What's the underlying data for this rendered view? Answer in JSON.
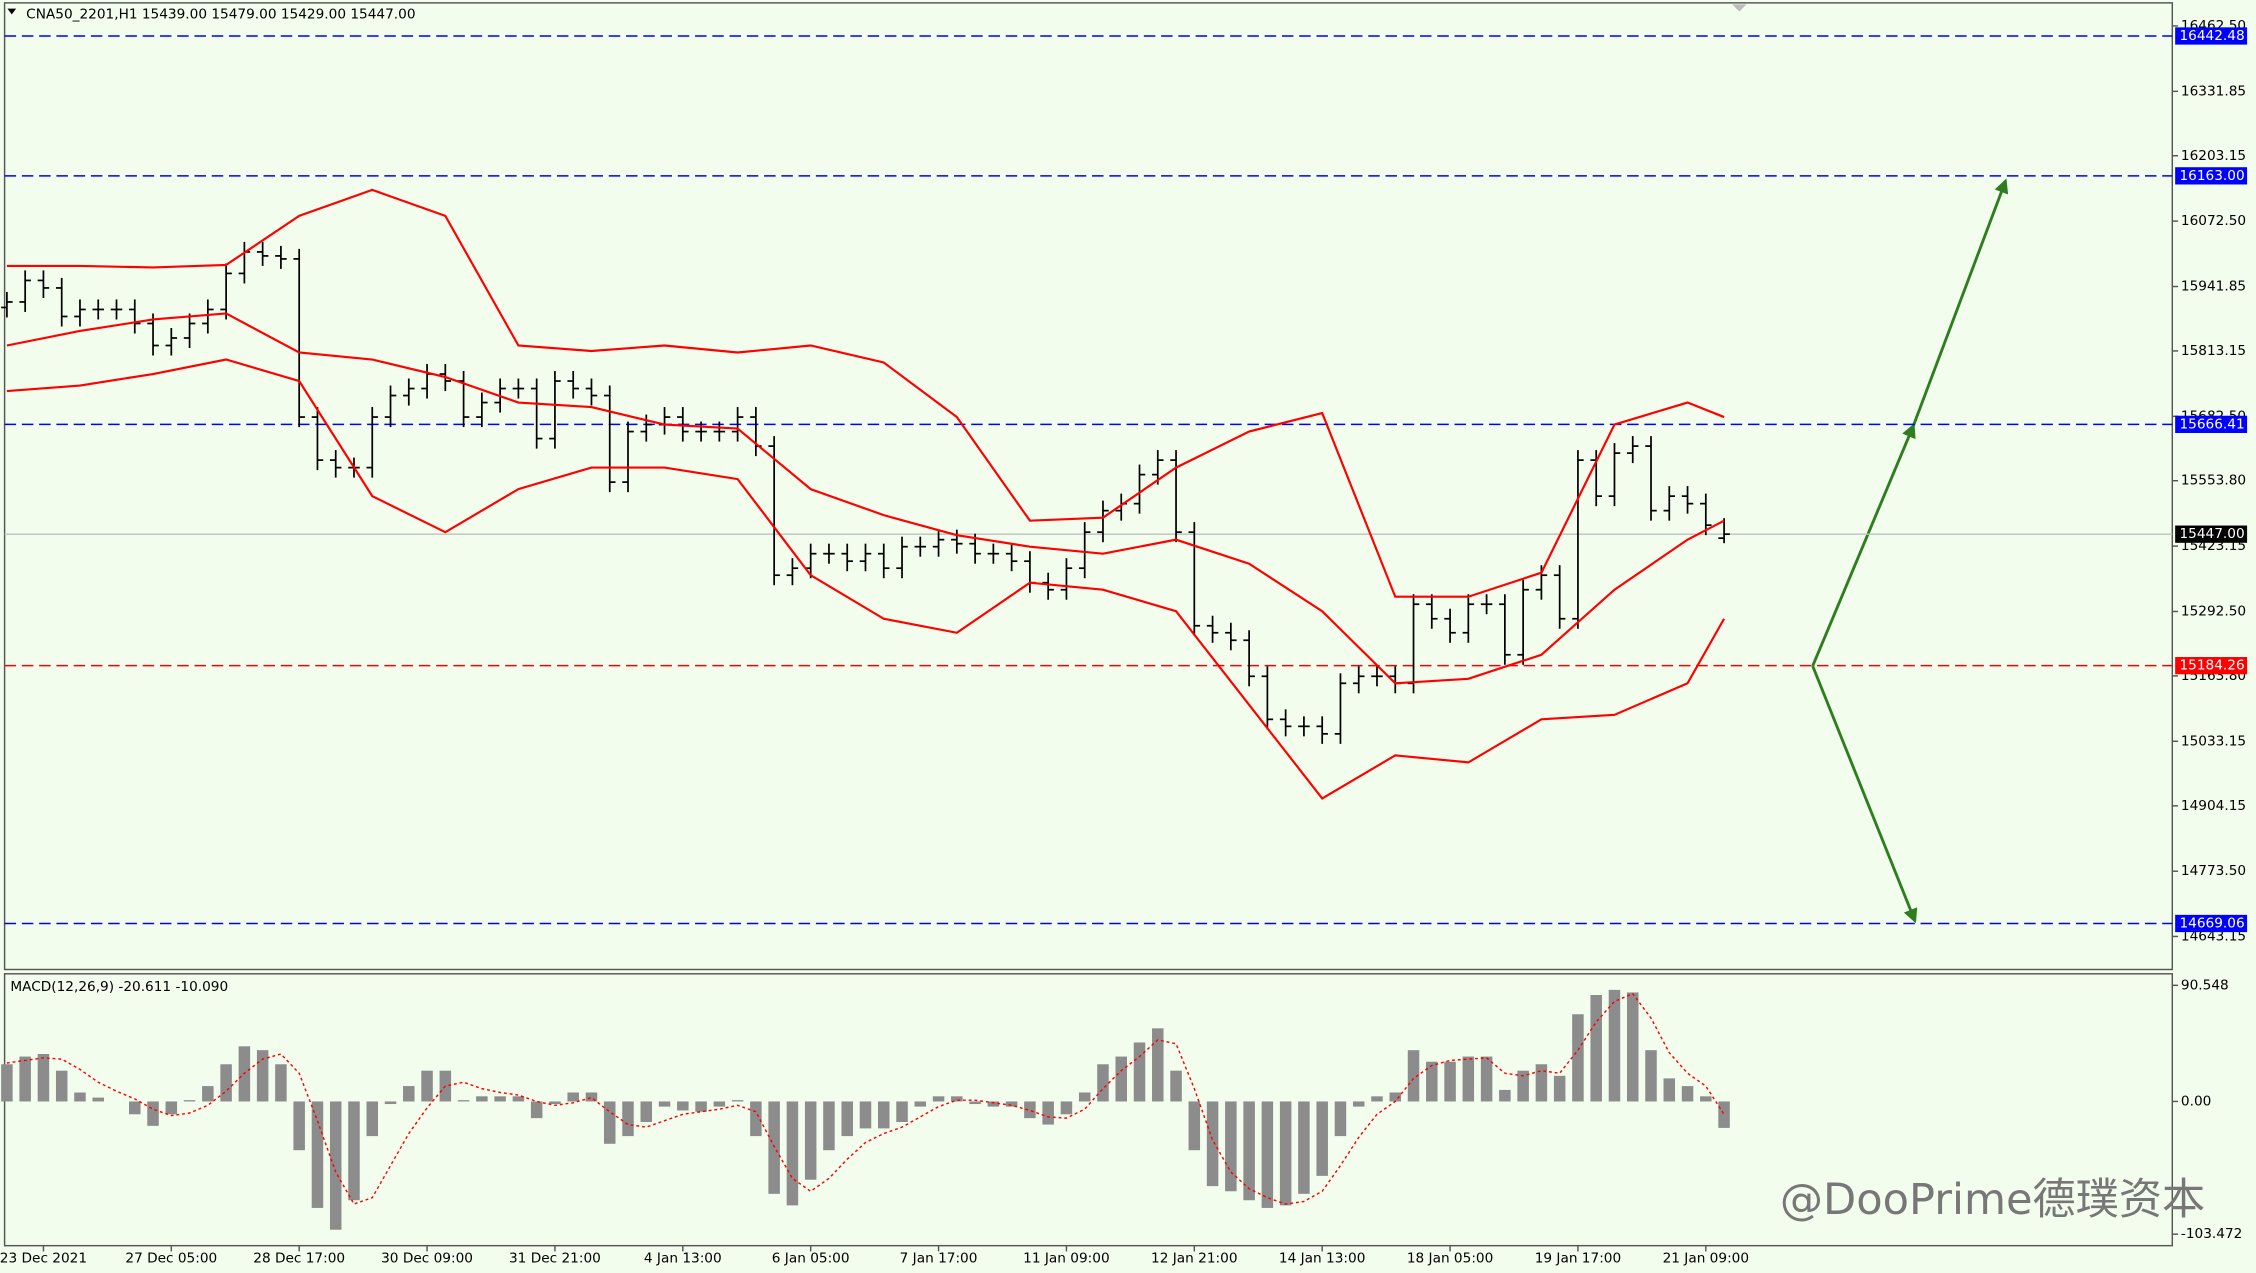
{
  "chart_data": [
    {
      "type": "candlestick",
      "title": "CNA50_2201,H1  15439.00 15479.00 15429.00 15447.00",
      "categories": [
        null,
        null,
        "23 Dec 2021",
        null,
        null,
        null,
        null,
        null,
        null,
        "27 Dec 05:00",
        null,
        null,
        null,
        null,
        null,
        null,
        "28 Dec 17:00",
        null,
        null,
        null,
        null,
        null,
        null,
        "30 Dec 09:00",
        null,
        null,
        null,
        null,
        null,
        null,
        "31 Dec 21:00",
        null,
        null,
        null,
        null,
        null,
        null,
        "4 Jan 13:00",
        null,
        null,
        null,
        null,
        null,
        null,
        "6 Jan 05:00",
        null,
        null,
        null,
        null,
        null,
        null,
        "7 Jan 17:00",
        null,
        null,
        null,
        null,
        null,
        null,
        "11 Jan 09:00",
        null,
        null,
        null,
        null,
        null,
        null,
        "12 Jan 21:00",
        null,
        null,
        null,
        null,
        null,
        null,
        "14 Jan 13:00",
        null,
        null,
        null,
        null,
        null,
        null,
        "18 Jan 05:00",
        null,
        null,
        null,
        null,
        null,
        null,
        "19 Jan 17:00",
        null,
        null,
        null,
        null,
        null,
        null,
        "21 Jan 09:00",
        null
      ],
      "open": [
        15900,
        15911,
        15954,
        15939,
        15882,
        15896,
        15896,
        15896,
        15868,
        15824,
        15839,
        15868,
        15896,
        15968,
        16011,
        16003,
        15997,
        15681,
        15595,
        15580,
        15580,
        15681,
        15724,
        15738,
        15767,
        15753,
        15681,
        15710,
        15738,
        15738,
        15638,
        15753,
        15738,
        15724,
        15551,
        15652,
        15666,
        15681,
        15652,
        15652,
        15652,
        15681,
        15623,
        15365,
        15379,
        15408,
        15408,
        15393,
        15408,
        15379,
        15422,
        15422,
        15436,
        15428,
        15408,
        15408,
        15393,
        15350,
        15336,
        15379,
        15451,
        15494,
        15508,
        15566,
        15595,
        15451,
        15264,
        15250,
        15235,
        15163,
        15077,
        15063,
        15063,
        15048,
        15149,
        15163,
        15163,
        15149,
        15307,
        15278,
        15250,
        15307,
        15307,
        15206,
        15336,
        15365,
        15278,
        15595,
        15523,
        15609,
        15623,
        15494,
        15523,
        15508,
        15439
      ],
      "high": [
        15931,
        15974,
        15974,
        15959,
        15916,
        15916,
        15916,
        15916,
        15888,
        15859,
        15888,
        15916,
        15988,
        16031,
        16031,
        16023,
        16017,
        15701,
        15615,
        15600,
        15701,
        15744,
        15758,
        15787,
        15787,
        15773,
        15730,
        15758,
        15758,
        15758,
        15773,
        15773,
        15758,
        15744,
        15672,
        15686,
        15701,
        15701,
        15672,
        15672,
        15701,
        15701,
        15643,
        15399,
        15428,
        15428,
        15428,
        15428,
        15428,
        15442,
        15442,
        15456,
        15456,
        15448,
        15428,
        15428,
        15413,
        15370,
        15399,
        15471,
        15514,
        15528,
        15586,
        15615,
        15615,
        15471,
        15284,
        15270,
        15255,
        15183,
        15097,
        15083,
        15083,
        15169,
        15183,
        15183,
        15183,
        15327,
        15327,
        15298,
        15327,
        15327,
        15327,
        15356,
        15385,
        15385,
        15615,
        15615,
        15629,
        15643,
        15643,
        15543,
        15543,
        15528,
        15479
      ],
      "low": [
        15880,
        15891,
        15919,
        15862,
        15862,
        15876,
        15876,
        15848,
        15804,
        15804,
        15819,
        15848,
        15876,
        15948,
        15983,
        15977,
        15661,
        15575,
        15560,
        15560,
        15560,
        15661,
        15704,
        15718,
        15733,
        15661,
        15661,
        15690,
        15718,
        15618,
        15618,
        15718,
        15704,
        15531,
        15531,
        15632,
        15646,
        15632,
        15632,
        15632,
        15632,
        15603,
        15345,
        15345,
        15359,
        15388,
        15373,
        15373,
        15359,
        15359,
        15402,
        15402,
        15408,
        15388,
        15388,
        15373,
        15330,
        15316,
        15316,
        15359,
        15431,
        15474,
        15488,
        15546,
        15431,
        15244,
        15230,
        15215,
        15143,
        15057,
        15043,
        15043,
        15028,
        15028,
        15129,
        15143,
        15129,
        15129,
        15258,
        15230,
        15230,
        15287,
        15186,
        15186,
        15316,
        15258,
        15258,
        15503,
        15503,
        15589,
        15474,
        15474,
        15488,
        15445,
        15429
      ],
      "close": [
        15911,
        15954,
        15939,
        15882,
        15896,
        15896,
        15896,
        15868,
        15824,
        15839,
        15868,
        15896,
        15968,
        16011,
        16003,
        15997,
        15681,
        15595,
        15580,
        15580,
        15681,
        15724,
        15738,
        15767,
        15753,
        15681,
        15710,
        15738,
        15738,
        15638,
        15753,
        15738,
        15724,
        15551,
        15652,
        15666,
        15681,
        15652,
        15652,
        15652,
        15681,
        15623,
        15365,
        15379,
        15408,
        15408,
        15393,
        15408,
        15379,
        15422,
        15422,
        15436,
        15428,
        15408,
        15408,
        15393,
        15350,
        15336,
        15379,
        15451,
        15494,
        15508,
        15566,
        15595,
        15451,
        15264,
        15250,
        15235,
        15163,
        15077,
        15063,
        15063,
        15048,
        15149,
        15163,
        15163,
        15149,
        15307,
        15278,
        15250,
        15307,
        15307,
        15206,
        15336,
        15365,
        15278,
        15595,
        15523,
        15609,
        15623,
        15494,
        15523,
        15508,
        15465,
        15447
      ],
      "color": "#000000",
      "lines": [
        {
          "color": "#ff0000",
          "x": [
            0,
            4,
            8,
            12,
            16,
            20,
            24,
            28,
            32,
            36,
            40,
            44,
            48,
            52,
            56,
            60,
            64,
            68,
            72,
            76,
            80,
            84,
            88,
            92,
            94
          ],
          "values": [
            15983,
            15983,
            15980,
            15985,
            16083,
            16135,
            16083,
            15824,
            15813,
            15824,
            15810,
            15824,
            15790,
            15681,
            15474,
            15480,
            15580,
            15652,
            15689,
            15322,
            15322,
            15370,
            15666,
            15710,
            15681
          ]
        },
        {
          "color": "#ff0000",
          "x": [
            0,
            4,
            8,
            12,
            16,
            20,
            24,
            28,
            32,
            36,
            40,
            44,
            48,
            52,
            56,
            60,
            64,
            68,
            72,
            76,
            80,
            84,
            88,
            92,
            94
          ],
          "values": [
            15824,
            15853,
            15876,
            15888,
            15810,
            15796,
            15761,
            15710,
            15701,
            15666,
            15658,
            15537,
            15485,
            15445,
            15422,
            15408,
            15436,
            15388,
            15293,
            15149,
            15158,
            15206,
            15336,
            15436,
            15474
          ]
        },
        {
          "color": "#ff0000",
          "x": [
            0,
            4,
            8,
            12,
            16,
            20,
            24,
            28,
            32,
            36,
            40,
            44,
            48,
            52,
            56,
            60,
            64,
            68,
            72,
            76,
            80,
            84,
            88,
            92,
            94
          ],
          "values": [
            15733,
            15744,
            15767,
            15796,
            15753,
            15523,
            15451,
            15537,
            15580,
            15580,
            15557,
            15365,
            15278,
            15250,
            15350,
            15336,
            15293,
            15106,
            14919,
            15005,
            14991,
            15077,
            15086,
            15149,
            15278
          ]
        }
      ],
      "levels": [
        {
          "value": 16442.48,
          "color": "#0000ff"
        },
        {
          "value": 16163,
          "label": "16163.00",
          "color": "#0000ff"
        },
        {
          "value": 15666.41,
          "color": "#0000ff"
        },
        {
          "value": 15447,
          "label": "15447.00",
          "color": "#000000",
          "current": true
        },
        {
          "value": 15184.26,
          "color": "#ff0000"
        },
        {
          "value": 14669.06,
          "color": "#0000ff"
        }
      ],
      "ylim": [
        14580,
        16500
      ],
      "yticks": [
        {
          "value": 16462.5,
          "label": "16462.50"
        },
        16331.85,
        16203.15,
        {
          "value": 16072.5,
          "label": "16072.50"
        },
        15941.85,
        15813.15,
        {
          "value": 15682.5,
          "label": "15682.50"
        },
        {
          "value": 15553.8,
          "label": "15553.80"
        },
        15423.15,
        {
          "value": 15292.5,
          "label": "15292.50"
        },
        {
          "value": 15163.8,
          "label": "15163.80"
        },
        15033.15,
        14904.15,
        {
          "value": 14773.5,
          "label": "14773.50"
        },
        14643.15
      ],
      "watermark": "@DooPrime德璞资本"
    },
    {
      "type": "macd",
      "title": "MACD(12,26,9) -20.611 -10.090",
      "values": [
        29,
        35,
        37,
        24,
        7,
        3,
        0,
        -10,
        -19,
        -10,
        1,
        12,
        29,
        43,
        40,
        29,
        -38,
        -83,
        -100,
        -77,
        -27,
        -2,
        12,
        24,
        24,
        1,
        4,
        4,
        4,
        -13,
        -2,
        7,
        7,
        -33,
        -27,
        -16,
        -4,
        -7,
        -8,
        -4,
        1,
        -27,
        -72,
        -81,
        -61,
        -38,
        -27,
        -21,
        -21,
        -16,
        -4,
        4,
        4,
        -2,
        -4,
        -4,
        -13,
        -18,
        -10,
        7,
        29,
        35,
        46,
        57,
        24,
        -38,
        -66,
        -70,
        -77,
        -83,
        -81,
        -72,
        -58,
        -27,
        -4,
        4,
        7,
        40,
        31,
        31,
        35,
        35,
        9,
        24,
        29,
        20,
        68,
        83,
        87,
        85,
        40,
        18,
        12,
        4,
        -20.611
      ],
      "color": "#8c8c8c",
      "signal": [
        30,
        32,
        34,
        33,
        25,
        15,
        8,
        2,
        -6,
        -11,
        -9,
        -3,
        8,
        22,
        33,
        37,
        22,
        -15,
        -55,
        -80,
        -75,
        -50,
        -25,
        -5,
        12,
        15,
        10,
        7,
        5,
        0,
        -3,
        -1,
        3,
        -8,
        -18,
        -20,
        -15,
        -10,
        -8,
        -6,
        -3,
        -8,
        -35,
        -60,
        -70,
        -60,
        -45,
        -32,
        -25,
        -20,
        -12,
        -4,
        1,
        1,
        -1,
        -3,
        -7,
        -12,
        -13,
        -6,
        10,
        24,
        35,
        48,
        45,
        10,
        -30,
        -55,
        -68,
        -75,
        -80,
        -78,
        -70,
        -50,
        -28,
        -10,
        0,
        18,
        28,
        32,
        33,
        34,
        22,
        20,
        24,
        22,
        40,
        62,
        78,
        84,
        65,
        38,
        22,
        12,
        -10.09
      ],
      "signal_color": "#ff0000",
      "ylim": [
        -111.3,
        98.4
      ],
      "yticks": [
        90.548,
        {
          "value": 0,
          "label": "0.00"
        },
        -103.472
      ]
    }
  ]
}
